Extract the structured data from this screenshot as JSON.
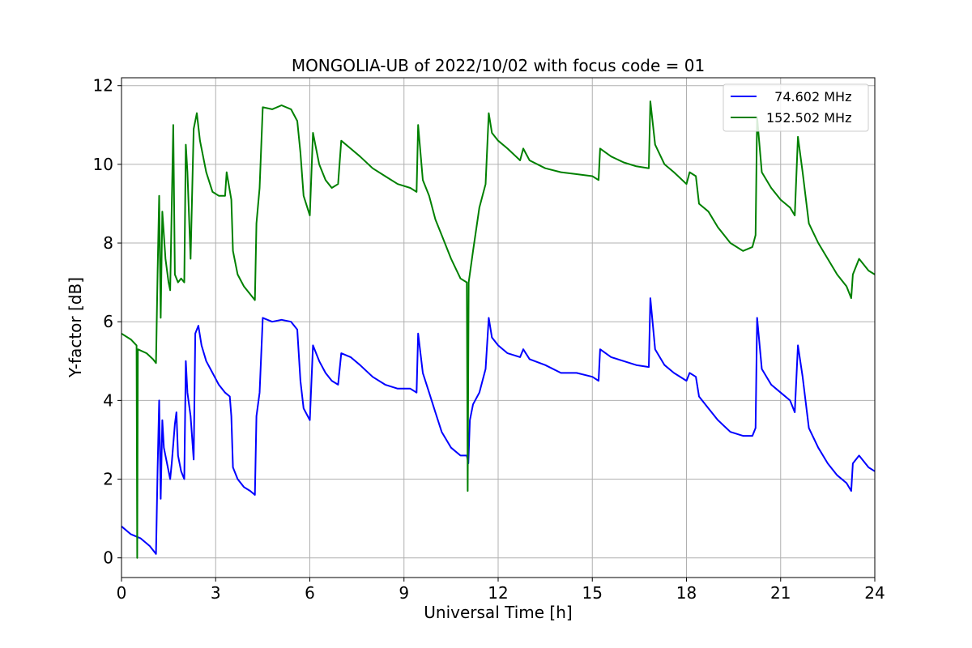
{
  "chart_data": {
    "type": "line",
    "title": "MONGOLIA-UB of 2022/10/02 with focus code = 01",
    "xlabel": "Universal Time [h]",
    "ylabel": "Y-factor [dB]",
    "xlim": [
      0,
      24
    ],
    "ylim": [
      -0.5,
      12.2
    ],
    "xticks": [
      0,
      3,
      6,
      9,
      12,
      15,
      18,
      21,
      24
    ],
    "yticks": [
      0,
      2,
      4,
      6,
      8,
      10,
      12
    ],
    "grid": true,
    "legend_position": "top-right",
    "series": [
      {
        "name": "  74.602 MHz",
        "color": "#0000ff",
        "points": [
          [
            0.0,
            0.8
          ],
          [
            0.3,
            0.6
          ],
          [
            0.6,
            0.5
          ],
          [
            0.9,
            0.3
          ],
          [
            1.1,
            0.1
          ],
          [
            1.15,
            2.3
          ],
          [
            1.2,
            4.0
          ],
          [
            1.25,
            1.5
          ],
          [
            1.3,
            3.5
          ],
          [
            1.35,
            2.8
          ],
          [
            1.45,
            2.4
          ],
          [
            1.55,
            2.0
          ],
          [
            1.6,
            2.4
          ],
          [
            1.7,
            3.4
          ],
          [
            1.75,
            3.7
          ],
          [
            1.8,
            2.6
          ],
          [
            1.9,
            2.2
          ],
          [
            2.0,
            2.0
          ],
          [
            2.05,
            5.0
          ],
          [
            2.1,
            4.2
          ],
          [
            2.2,
            3.6
          ],
          [
            2.3,
            2.5
          ],
          [
            2.35,
            5.7
          ],
          [
            2.45,
            5.9
          ],
          [
            2.55,
            5.4
          ],
          [
            2.7,
            5.0
          ],
          [
            2.9,
            4.7
          ],
          [
            3.1,
            4.4
          ],
          [
            3.3,
            4.2
          ],
          [
            3.45,
            4.1
          ],
          [
            3.5,
            3.6
          ],
          [
            3.55,
            2.3
          ],
          [
            3.7,
            2.0
          ],
          [
            3.9,
            1.8
          ],
          [
            4.1,
            1.7
          ],
          [
            4.25,
            1.6
          ],
          [
            4.3,
            3.6
          ],
          [
            4.4,
            4.2
          ],
          [
            4.5,
            6.1
          ],
          [
            4.8,
            6.0
          ],
          [
            5.1,
            6.05
          ],
          [
            5.4,
            6.0
          ],
          [
            5.6,
            5.8
          ],
          [
            5.7,
            4.5
          ],
          [
            5.8,
            3.8
          ],
          [
            6.0,
            3.5
          ],
          [
            6.1,
            5.4
          ],
          [
            6.3,
            5.0
          ],
          [
            6.5,
            4.7
          ],
          [
            6.7,
            4.5
          ],
          [
            6.9,
            4.4
          ],
          [
            7.0,
            5.2
          ],
          [
            7.3,
            5.1
          ],
          [
            7.6,
            4.9
          ],
          [
            8.0,
            4.6
          ],
          [
            8.4,
            4.4
          ],
          [
            8.8,
            4.3
          ],
          [
            9.2,
            4.3
          ],
          [
            9.4,
            4.2
          ],
          [
            9.45,
            5.7
          ],
          [
            9.6,
            4.7
          ],
          [
            9.8,
            4.2
          ],
          [
            10.0,
            3.7
          ],
          [
            10.2,
            3.2
          ],
          [
            10.5,
            2.8
          ],
          [
            10.8,
            2.6
          ],
          [
            11.0,
            2.6
          ],
          [
            11.05,
            2.4
          ],
          [
            11.1,
            3.5
          ],
          [
            11.2,
            3.9
          ],
          [
            11.4,
            4.2
          ],
          [
            11.6,
            4.8
          ],
          [
            11.7,
            6.1
          ],
          [
            11.8,
            5.6
          ],
          [
            12.0,
            5.4
          ],
          [
            12.3,
            5.2
          ],
          [
            12.7,
            5.1
          ],
          [
            12.8,
            5.3
          ],
          [
            13.0,
            5.05
          ],
          [
            13.5,
            4.9
          ],
          [
            14.0,
            4.7
          ],
          [
            14.5,
            4.7
          ],
          [
            15.0,
            4.6
          ],
          [
            15.2,
            4.5
          ],
          [
            15.25,
            5.3
          ],
          [
            15.6,
            5.1
          ],
          [
            16.0,
            5.0
          ],
          [
            16.4,
            4.9
          ],
          [
            16.8,
            4.85
          ],
          [
            16.85,
            6.6
          ],
          [
            17.0,
            5.3
          ],
          [
            17.3,
            4.9
          ],
          [
            17.6,
            4.7
          ],
          [
            18.0,
            4.5
          ],
          [
            18.1,
            4.7
          ],
          [
            18.3,
            4.6
          ],
          [
            18.4,
            4.1
          ],
          [
            18.7,
            3.8
          ],
          [
            19.0,
            3.5
          ],
          [
            19.4,
            3.2
          ],
          [
            19.8,
            3.1
          ],
          [
            20.1,
            3.1
          ],
          [
            20.2,
            3.3
          ],
          [
            20.25,
            6.1
          ],
          [
            20.4,
            4.8
          ],
          [
            20.7,
            4.4
          ],
          [
            21.0,
            4.2
          ],
          [
            21.3,
            4.0
          ],
          [
            21.45,
            3.7
          ],
          [
            21.55,
            5.4
          ],
          [
            21.7,
            4.6
          ],
          [
            21.9,
            3.3
          ],
          [
            22.2,
            2.8
          ],
          [
            22.5,
            2.4
          ],
          [
            22.8,
            2.1
          ],
          [
            23.1,
            1.9
          ],
          [
            23.25,
            1.7
          ],
          [
            23.3,
            2.4
          ],
          [
            23.5,
            2.6
          ],
          [
            23.8,
            2.3
          ],
          [
            24.0,
            2.2
          ]
        ]
      },
      {
        "name": "152.502 MHz",
        "color": "#008000",
        "points": [
          [
            0.0,
            5.7
          ],
          [
            0.3,
            5.55
          ],
          [
            0.48,
            5.4
          ],
          [
            0.5,
            0.0
          ],
          [
            0.52,
            5.3
          ],
          [
            0.8,
            5.2
          ],
          [
            1.0,
            5.05
          ],
          [
            1.1,
            4.95
          ],
          [
            1.15,
            7.3
          ],
          [
            1.2,
            9.2
          ],
          [
            1.25,
            6.1
          ],
          [
            1.3,
            8.8
          ],
          [
            1.4,
            7.6
          ],
          [
            1.5,
            7.0
          ],
          [
            1.55,
            6.8
          ],
          [
            1.65,
            11.0
          ],
          [
            1.7,
            7.2
          ],
          [
            1.8,
            7.0
          ],
          [
            1.9,
            7.1
          ],
          [
            2.0,
            7.0
          ],
          [
            2.05,
            10.5
          ],
          [
            2.1,
            9.8
          ],
          [
            2.2,
            7.6
          ],
          [
            2.3,
            10.9
          ],
          [
            2.4,
            11.3
          ],
          [
            2.5,
            10.6
          ],
          [
            2.7,
            9.8
          ],
          [
            2.9,
            9.3
          ],
          [
            3.1,
            9.2
          ],
          [
            3.3,
            9.2
          ],
          [
            3.35,
            9.8
          ],
          [
            3.5,
            9.1
          ],
          [
            3.55,
            7.8
          ],
          [
            3.7,
            7.2
          ],
          [
            3.9,
            6.9
          ],
          [
            4.1,
            6.7
          ],
          [
            4.25,
            6.55
          ],
          [
            4.3,
            8.5
          ],
          [
            4.4,
            9.4
          ],
          [
            4.5,
            11.45
          ],
          [
            4.8,
            11.4
          ],
          [
            5.1,
            11.5
          ],
          [
            5.4,
            11.4
          ],
          [
            5.6,
            11.1
          ],
          [
            5.7,
            10.3
          ],
          [
            5.8,
            9.2
          ],
          [
            6.0,
            8.7
          ],
          [
            6.1,
            10.8
          ],
          [
            6.3,
            10.0
          ],
          [
            6.5,
            9.6
          ],
          [
            6.7,
            9.4
          ],
          [
            6.9,
            9.5
          ],
          [
            7.0,
            10.6
          ],
          [
            7.3,
            10.4
          ],
          [
            7.6,
            10.2
          ],
          [
            8.0,
            9.9
          ],
          [
            8.4,
            9.7
          ],
          [
            8.8,
            9.5
          ],
          [
            9.2,
            9.4
          ],
          [
            9.4,
            9.3
          ],
          [
            9.45,
            11.0
          ],
          [
            9.6,
            9.6
          ],
          [
            9.8,
            9.2
          ],
          [
            10.0,
            8.6
          ],
          [
            10.2,
            8.2
          ],
          [
            10.5,
            7.6
          ],
          [
            10.8,
            7.1
          ],
          [
            11.0,
            7.0
          ],
          [
            11.03,
            1.7
          ],
          [
            11.06,
            7.0
          ],
          [
            11.2,
            7.8
          ],
          [
            11.4,
            8.9
          ],
          [
            11.6,
            9.5
          ],
          [
            11.7,
            11.3
          ],
          [
            11.8,
            10.8
          ],
          [
            12.0,
            10.6
          ],
          [
            12.3,
            10.4
          ],
          [
            12.7,
            10.1
          ],
          [
            12.8,
            10.4
          ],
          [
            13.0,
            10.1
          ],
          [
            13.5,
            9.9
          ],
          [
            14.0,
            9.8
          ],
          [
            14.5,
            9.75
          ],
          [
            15.0,
            9.7
          ],
          [
            15.2,
            9.6
          ],
          [
            15.25,
            10.4
          ],
          [
            15.6,
            10.2
          ],
          [
            16.0,
            10.05
          ],
          [
            16.4,
            9.95
          ],
          [
            16.8,
            9.9
          ],
          [
            16.85,
            11.6
          ],
          [
            17.0,
            10.5
          ],
          [
            17.3,
            10.0
          ],
          [
            17.6,
            9.8
          ],
          [
            18.0,
            9.5
          ],
          [
            18.1,
            9.8
          ],
          [
            18.3,
            9.7
          ],
          [
            18.4,
            9.0
          ],
          [
            18.7,
            8.8
          ],
          [
            19.0,
            8.4
          ],
          [
            19.4,
            8.0
          ],
          [
            19.8,
            7.8
          ],
          [
            20.1,
            7.9
          ],
          [
            20.2,
            8.2
          ],
          [
            20.25,
            11.2
          ],
          [
            20.4,
            9.8
          ],
          [
            20.7,
            9.4
          ],
          [
            21.0,
            9.1
          ],
          [
            21.3,
            8.9
          ],
          [
            21.45,
            8.7
          ],
          [
            21.55,
            10.7
          ],
          [
            21.7,
            9.8
          ],
          [
            21.9,
            8.5
          ],
          [
            22.2,
            8.0
          ],
          [
            22.5,
            7.6
          ],
          [
            22.8,
            7.2
          ],
          [
            23.1,
            6.9
          ],
          [
            23.25,
            6.6
          ],
          [
            23.3,
            7.2
          ],
          [
            23.5,
            7.6
          ],
          [
            23.8,
            7.3
          ],
          [
            24.0,
            7.2
          ]
        ]
      }
    ]
  }
}
